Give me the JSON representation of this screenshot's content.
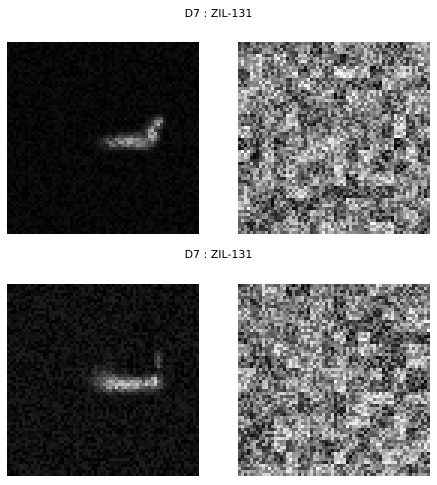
{
  "panels": [
    {
      "title": "D7 : ZIL-131",
      "magnitude_image": "sar-magnitude-chip",
      "phase_image": "sar-phase-noise-chip"
    },
    {
      "title": "D7 : ZIL-131",
      "magnitude_image": "sar-magnitude-chip",
      "phase_image": "sar-phase-noise-chip"
    }
  ]
}
